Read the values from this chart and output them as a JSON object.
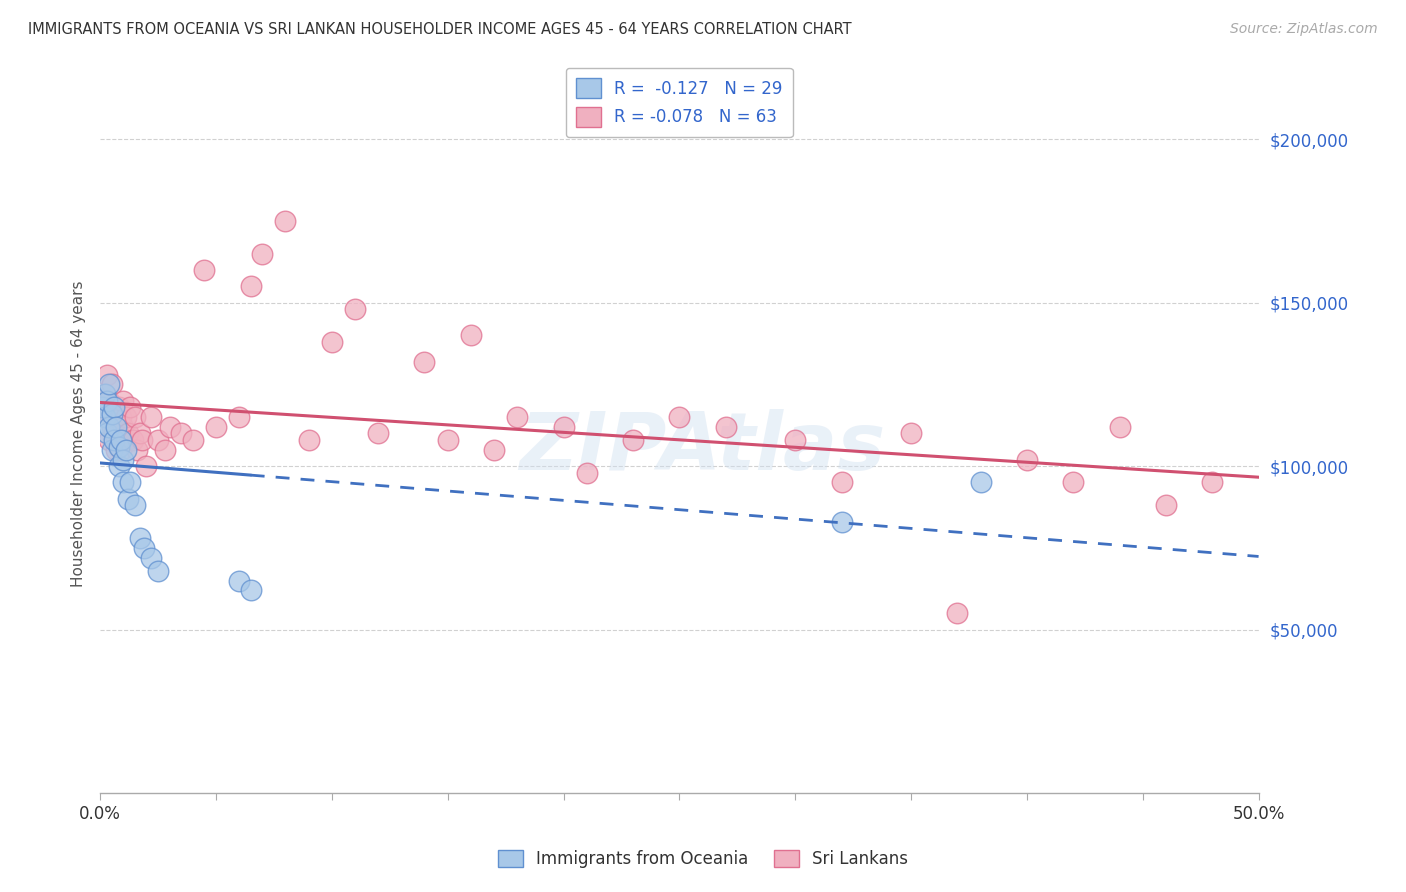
{
  "title": "IMMIGRANTS FROM OCEANIA VS SRI LANKAN HOUSEHOLDER INCOME AGES 45 - 64 YEARS CORRELATION CHART",
  "source": "Source: ZipAtlas.com",
  "ylabel": "Householder Income Ages 45 - 64 years",
  "legend_blue_r": "R =  -0.127",
  "legend_blue_n": "N = 29",
  "legend_pink_r": "R = -0.078",
  "legend_pink_n": "N = 63",
  "legend_label_blue": "Immigrants from Oceania",
  "legend_label_pink": "Sri Lankans",
  "watermark": "ZIPAtlas",
  "xlim": [
    0.0,
    0.5
  ],
  "ylim": [
    0,
    220000
  ],
  "yticks": [
    50000,
    100000,
    150000,
    200000
  ],
  "ytick_labels": [
    "$50,000",
    "$100,000",
    "$150,000",
    "$200,000"
  ],
  "blue_scatter_color": "#a8c8e8",
  "blue_edge_color": "#6090d0",
  "pink_scatter_color": "#f0b0c0",
  "pink_edge_color": "#e07090",
  "blue_line_color": "#4070c0",
  "pink_line_color": "#d05070",
  "background_color": "#ffffff",
  "grid_color": "#cccccc",
  "blue_points_x": [
    0.001,
    0.002,
    0.002,
    0.003,
    0.003,
    0.004,
    0.004,
    0.005,
    0.005,
    0.006,
    0.006,
    0.007,
    0.008,
    0.008,
    0.009,
    0.01,
    0.01,
    0.011,
    0.012,
    0.013,
    0.015,
    0.017,
    0.019,
    0.022,
    0.025,
    0.06,
    0.065,
    0.32,
    0.38
  ],
  "blue_points_y": [
    118000,
    122000,
    115000,
    120000,
    110000,
    125000,
    112000,
    116000,
    105000,
    118000,
    108000,
    112000,
    100000,
    106000,
    108000,
    95000,
    102000,
    105000,
    90000,
    95000,
    88000,
    78000,
    75000,
    72000,
    68000,
    65000,
    62000,
    83000,
    95000
  ],
  "pink_points_x": [
    0.001,
    0.002,
    0.003,
    0.003,
    0.004,
    0.004,
    0.005,
    0.005,
    0.006,
    0.006,
    0.007,
    0.007,
    0.008,
    0.008,
    0.009,
    0.009,
    0.01,
    0.01,
    0.011,
    0.011,
    0.012,
    0.013,
    0.014,
    0.015,
    0.016,
    0.017,
    0.018,
    0.02,
    0.022,
    0.025,
    0.028,
    0.03,
    0.035,
    0.04,
    0.045,
    0.05,
    0.06,
    0.065,
    0.07,
    0.08,
    0.09,
    0.1,
    0.11,
    0.12,
    0.14,
    0.15,
    0.16,
    0.17,
    0.18,
    0.2,
    0.21,
    0.23,
    0.25,
    0.27,
    0.3,
    0.32,
    0.35,
    0.37,
    0.4,
    0.42,
    0.44,
    0.46,
    0.48
  ],
  "pink_points_y": [
    118000,
    122000,
    128000,
    115000,
    120000,
    108000,
    125000,
    112000,
    118000,
    110000,
    115000,
    105000,
    118000,
    108000,
    115000,
    105000,
    112000,
    120000,
    108000,
    115000,
    110000,
    118000,
    108000,
    115000,
    105000,
    110000,
    108000,
    100000,
    115000,
    108000,
    105000,
    112000,
    110000,
    108000,
    160000,
    112000,
    115000,
    155000,
    165000,
    175000,
    108000,
    138000,
    148000,
    110000,
    132000,
    108000,
    140000,
    105000,
    115000,
    112000,
    98000,
    108000,
    115000,
    112000,
    108000,
    95000,
    110000,
    55000,
    102000,
    95000,
    112000,
    88000,
    95000
  ]
}
